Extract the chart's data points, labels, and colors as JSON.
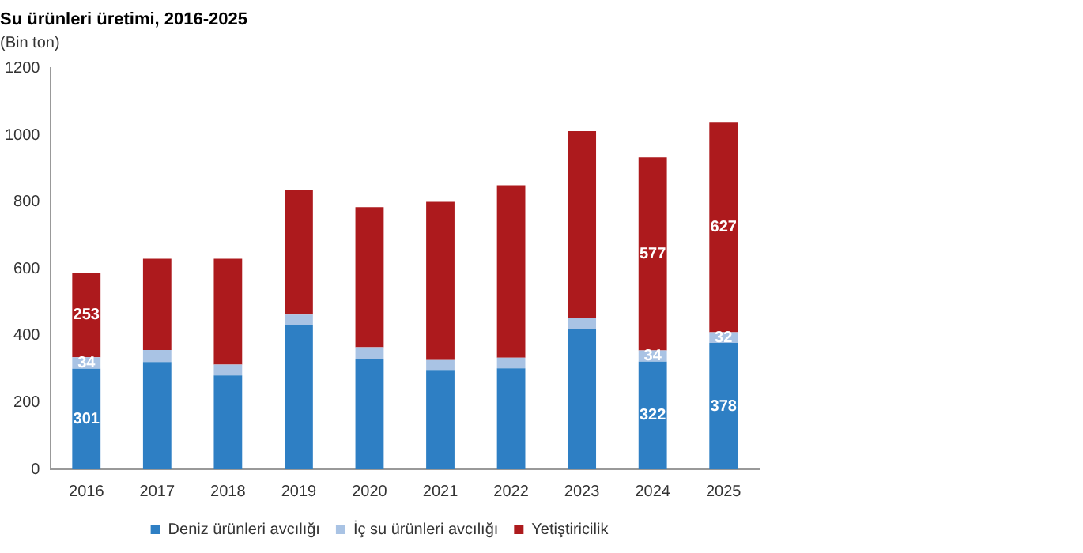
{
  "chart_data": {
    "type": "bar",
    "title": "Su ürünleri üretimi, 2016-2025",
    "subtitle": "(Bin ton)",
    "stacked": true,
    "categories": [
      "2016",
      "2017",
      "2018",
      "2019",
      "2020",
      "2021",
      "2022",
      "2023",
      "2024",
      "2025"
    ],
    "series": [
      {
        "name": "Deniz ürünleri avcılığı",
        "color": "#2e7fc4",
        "values": [
          301,
          321,
          281,
          430,
          329,
          297,
          302,
          421,
          322,
          378
        ],
        "value_labels": [
          "301",
          null,
          null,
          null,
          null,
          null,
          null,
          null,
          "322",
          "378"
        ]
      },
      {
        "name": "İç su ürünleri avcılığı",
        "color": "#a9c3e4",
        "values": [
          34,
          36,
          32,
          33,
          36,
          30,
          32,
          32,
          34,
          32
        ],
        "value_labels": [
          "34",
          null,
          null,
          null,
          null,
          null,
          null,
          null,
          "34",
          "32"
        ]
      },
      {
        "name": "Yetiştiricilik",
        "color": "#ad1a1d",
        "values": [
          253,
          273,
          317,
          372,
          419,
          473,
          516,
          559,
          577,
          627
        ],
        "value_labels": [
          "253",
          null,
          null,
          null,
          null,
          null,
          null,
          null,
          "577",
          "627"
        ]
      }
    ],
    "ylim": [
      0,
      1200
    ],
    "yticks": [
      0,
      200,
      400,
      600,
      800,
      1000,
      1200
    ],
    "grid": false,
    "legend": "bottom"
  }
}
